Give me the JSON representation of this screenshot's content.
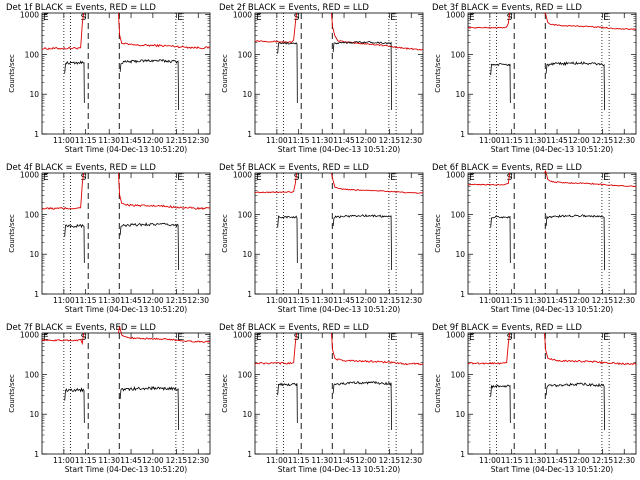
{
  "figure": {
    "xlabel": "Start Time (04-Dec-13 10:51:20)",
    "ylabel": "Counts/sec",
    "x_ticks": [
      "11:00",
      "11:15",
      "11:30",
      "11:45",
      "12:00",
      "12:15",
      "12:30"
    ],
    "y_ticks": [
      "1",
      "10",
      "100",
      "1000"
    ],
    "markers": {
      "E": "E",
      "S": "S"
    },
    "colors": {
      "events": "#000000",
      "lld": "#dd0000",
      "dashed": "#000000",
      "dotted": "#000000"
    }
  },
  "chart_data": [
    {
      "type": "line",
      "title": "Det 1f BLACK = Events, RED = LLD",
      "xlabel": "Start Time (04-Dec-13 10:51:20)",
      "ylabel": "Counts/sec",
      "y_scale": "log",
      "ylim": [
        1,
        1100
      ],
      "series": [
        {
          "name": "Events",
          "color": "#000000",
          "level": 60,
          "trend": 0.15,
          "noise": 0.08
        },
        {
          "name": "LLD",
          "color": "#dd0000",
          "level": 140,
          "trend": 0.15,
          "noise": 0.06
        }
      ]
    },
    {
      "type": "line",
      "title": "Det 2f BLACK = Events, RED = LLD",
      "xlabel": "Start Time (04-Dec-13 10:51:20)",
      "ylabel": "Counts/sec",
      "y_scale": "log",
      "ylim": [
        1,
        1100
      ],
      "series": [
        {
          "name": "Events",
          "color": "#000000",
          "level": 190,
          "trend": 0.02,
          "noise": 0.05
        },
        {
          "name": "LLD",
          "color": "#dd0000",
          "level": 220,
          "trend": -0.35,
          "noise": 0.04
        }
      ]
    },
    {
      "type": "line",
      "title": "Det 3f BLACK = Events, RED = LLD",
      "xlabel": "Start Time (04-Dec-13 10:51:20)",
      "ylabel": "Counts/sec",
      "y_scale": "log",
      "ylim": [
        1,
        1100
      ],
      "series": [
        {
          "name": "Events",
          "color": "#000000",
          "level": 55,
          "trend": 0.05,
          "noise": 0.08
        },
        {
          "name": "LLD",
          "color": "#dd0000",
          "level": 470,
          "trend": 0.0,
          "noise": 0.03
        }
      ]
    },
    {
      "type": "line",
      "title": "Det 4f BLACK = Events, RED = LLD",
      "xlabel": "Start Time (04-Dec-13 10:51:20)",
      "ylabel": "Counts/sec",
      "y_scale": "log",
      "ylim": [
        1,
        1100
      ],
      "series": [
        {
          "name": "Events",
          "color": "#000000",
          "level": 50,
          "trend": 0.1,
          "noise": 0.08
        },
        {
          "name": "LLD",
          "color": "#dd0000",
          "level": 140,
          "trend": 0.1,
          "noise": 0.06
        }
      ]
    },
    {
      "type": "line",
      "title": "Det 5f BLACK = Events, RED = LLD",
      "xlabel": "Start Time (04-Dec-13 10:51:20)",
      "ylabel": "Counts/sec",
      "y_scale": "log",
      "ylim": [
        1,
        1100
      ],
      "series": [
        {
          "name": "Events",
          "color": "#000000",
          "level": 85,
          "trend": 0.05,
          "noise": 0.06
        },
        {
          "name": "LLD",
          "color": "#dd0000",
          "level": 360,
          "trend": 0.05,
          "noise": 0.03
        }
      ]
    },
    {
      "type": "line",
      "title": "Det 6f BLACK = Events, RED = LLD",
      "xlabel": "Start Time (04-Dec-13 10:51:20)",
      "ylabel": "Counts/sec",
      "y_scale": "log",
      "ylim": [
        1,
        1100
      ],
      "series": [
        {
          "name": "Events",
          "color": "#000000",
          "level": 85,
          "trend": 0.05,
          "noise": 0.06
        },
        {
          "name": "LLD",
          "color": "#dd0000",
          "level": 560,
          "trend": 0.0,
          "noise": 0.03
        }
      ]
    },
    {
      "type": "line",
      "title": "Det 7f BLACK = Events, RED = LLD",
      "xlabel": "Start Time (04-Dec-13 10:51:20)",
      "ylabel": "Counts/sec",
      "y_scale": "log",
      "ylim": [
        1,
        1100
      ],
      "series": [
        {
          "name": "Events",
          "color": "#000000",
          "level": 40,
          "trend": 0.1,
          "noise": 0.09
        },
        {
          "name": "LLD",
          "color": "#dd0000",
          "level": 720,
          "trend": 0.0,
          "noise": 0.04
        }
      ]
    },
    {
      "type": "line",
      "title": "Det 8f BLACK = Events, RED = LLD",
      "xlabel": "Start Time (04-Dec-13 10:51:20)",
      "ylabel": "Counts/sec",
      "y_scale": "log",
      "ylim": [
        1,
        1100
      ],
      "series": [
        {
          "name": "Events",
          "color": "#000000",
          "level": 55,
          "trend": 0.1,
          "noise": 0.07
        },
        {
          "name": "LLD",
          "color": "#dd0000",
          "level": 190,
          "trend": 0.05,
          "noise": 0.05
        }
      ]
    },
    {
      "type": "line",
      "title": "Det 9f BLACK = Events, RED = LLD",
      "xlabel": "Start Time (04-Dec-13 10:51:20)",
      "ylabel": "Counts/sec",
      "y_scale": "log",
      "ylim": [
        1,
        1100
      ],
      "series": [
        {
          "name": "Events",
          "color": "#000000",
          "level": 50,
          "trend": 0.1,
          "noise": 0.08
        },
        {
          "name": "LLD",
          "color": "#dd0000",
          "level": 190,
          "trend": 0.05,
          "noise": 0.05
        }
      ]
    }
  ]
}
